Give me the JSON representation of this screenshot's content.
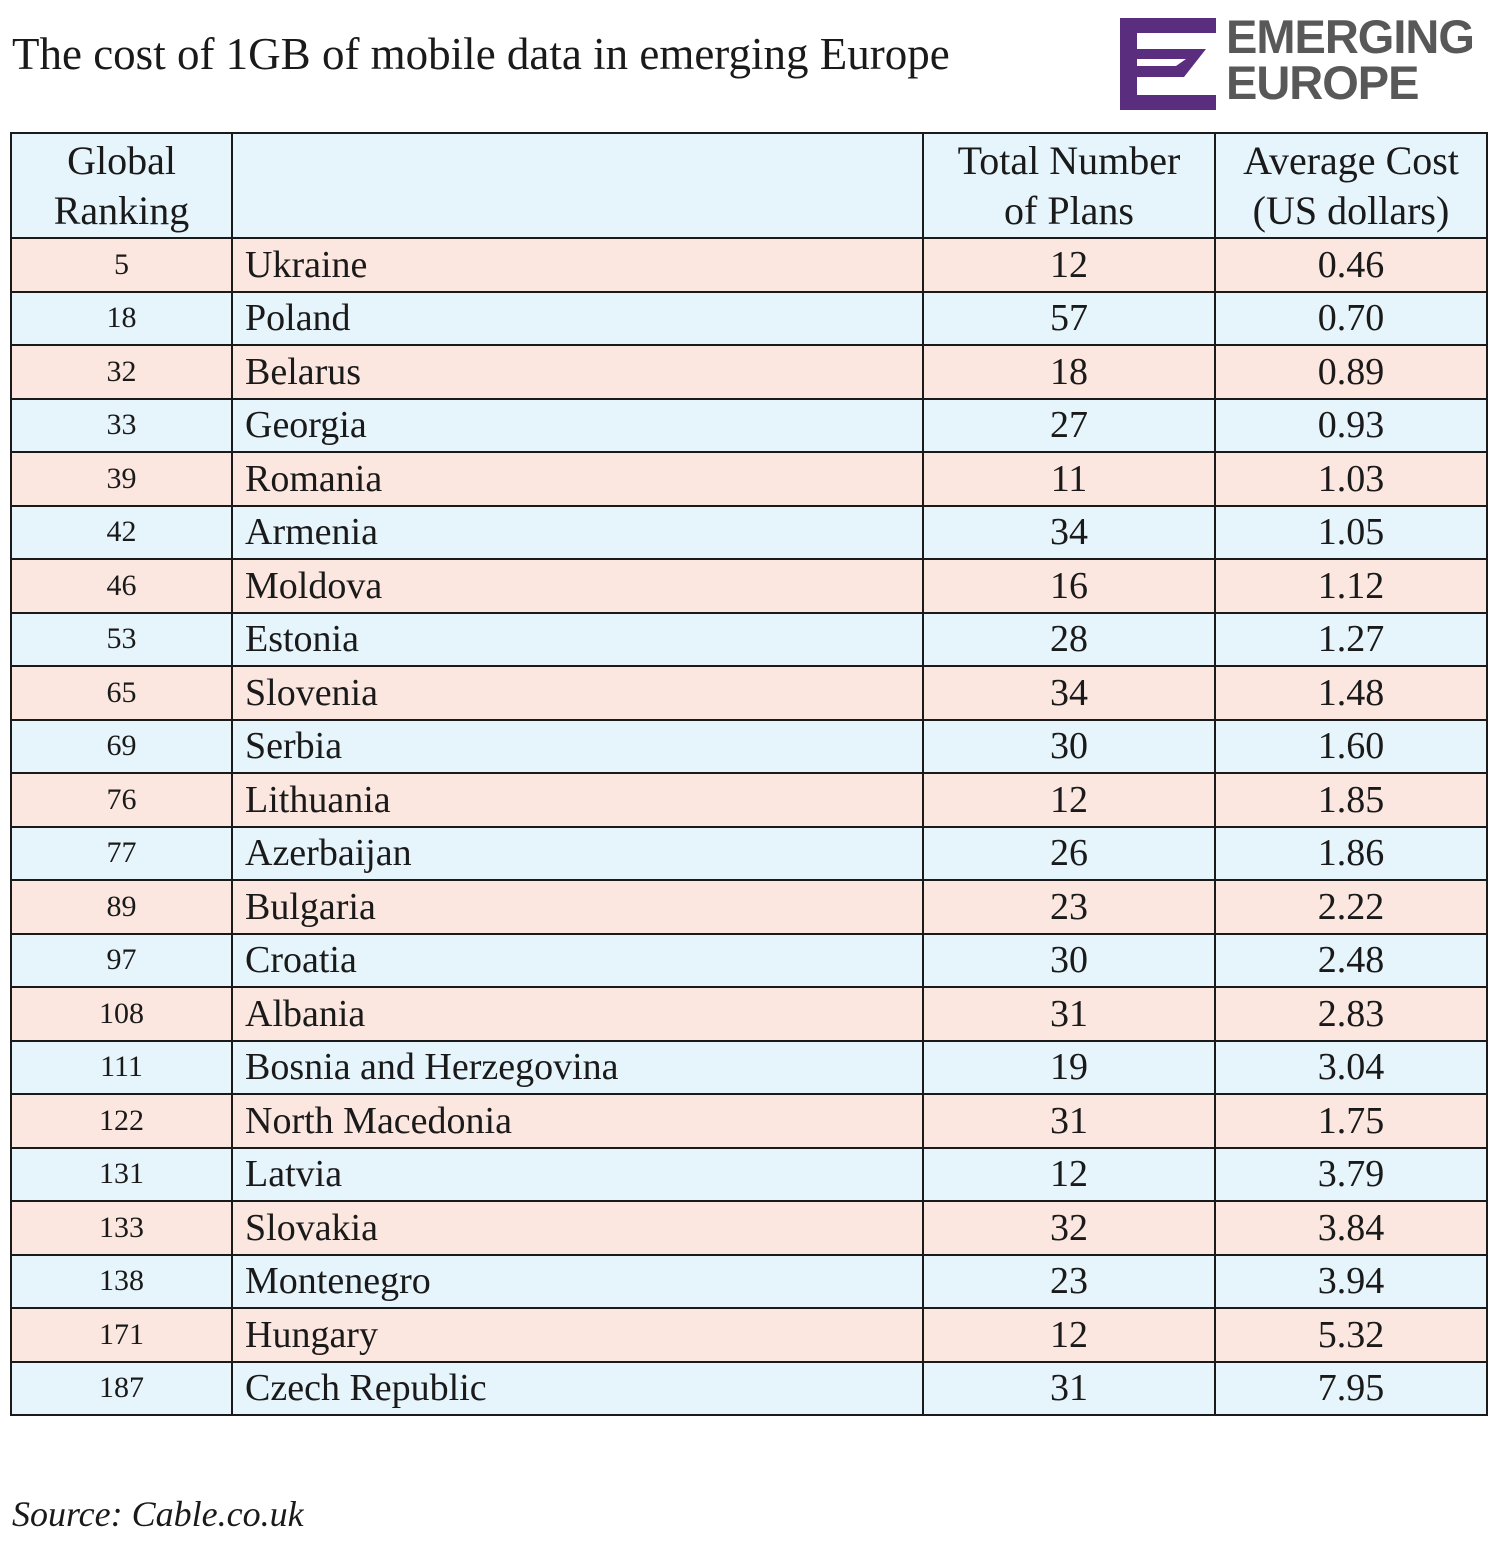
{
  "header": {
    "title": "The cost of 1GB of mobile data in emerging Europe"
  },
  "logo": {
    "line1": "EMERGING",
    "line2": "EUROPE",
    "mark_color": "#5b2d7e",
    "text_color": "#585858"
  },
  "colors": {
    "row_odd": "#fbe7e0",
    "row_even": "#e6f4fb",
    "header_bg": "#e6f4fb",
    "border": "#1a1a1a"
  },
  "chart_data": {
    "type": "table",
    "title": "The cost of 1GB of mobile data in emerging Europe",
    "columns": [
      "Global Ranking",
      "",
      "Total Number of Plans",
      "Average Cost (US dollars)"
    ],
    "header_lines": [
      [
        "Global",
        "Ranking"
      ],
      [
        ""
      ],
      [
        "Total Number",
        "of Plans"
      ],
      [
        "Average Cost",
        "(US dollars)"
      ]
    ],
    "rows": [
      {
        "rank": "5",
        "country": "Ukraine",
        "plans": "12",
        "cost": "0.46"
      },
      {
        "rank": "18",
        "country": "Poland",
        "plans": "57",
        "cost": "0.70"
      },
      {
        "rank": "32",
        "country": "Belarus",
        "plans": "18",
        "cost": "0.89"
      },
      {
        "rank": "33",
        "country": "Georgia",
        "plans": "27",
        "cost": "0.93"
      },
      {
        "rank": "39",
        "country": "Romania",
        "plans": "11",
        "cost": "1.03"
      },
      {
        "rank": "42",
        "country": "Armenia",
        "plans": "34",
        "cost": "1.05"
      },
      {
        "rank": "46",
        "country": "Moldova",
        "plans": "16",
        "cost": "1.12"
      },
      {
        "rank": "53",
        "country": "Estonia",
        "plans": "28",
        "cost": "1.27"
      },
      {
        "rank": "65",
        "country": "Slovenia",
        "plans": "34",
        "cost": "1.48"
      },
      {
        "rank": "69",
        "country": "Serbia",
        "plans": "30",
        "cost": "1.60"
      },
      {
        "rank": "76",
        "country": "Lithuania",
        "plans": "12",
        "cost": "1.85"
      },
      {
        "rank": "77",
        "country": "Azerbaijan",
        "plans": "26",
        "cost": "1.86"
      },
      {
        "rank": "89",
        "country": "Bulgaria",
        "plans": "23",
        "cost": "2.22"
      },
      {
        "rank": "97",
        "country": "Croatia",
        "plans": "30",
        "cost": "2.48"
      },
      {
        "rank": "108",
        "country": "Albania",
        "plans": "31",
        "cost": "2.83"
      },
      {
        "rank": "111",
        "country": "Bosnia and Herzegovina",
        "plans": "19",
        "cost": "3.04"
      },
      {
        "rank": "122",
        "country": "North Macedonia",
        "plans": "31",
        "cost": "1.75"
      },
      {
        "rank": "131",
        "country": "Latvia",
        "plans": "12",
        "cost": "3.79"
      },
      {
        "rank": "133",
        "country": "Slovakia",
        "plans": "32",
        "cost": "3.84"
      },
      {
        "rank": "138",
        "country": "Montenegro",
        "plans": "23",
        "cost": "3.94"
      },
      {
        "rank": "171",
        "country": "Hungary",
        "plans": "12",
        "cost": "5.32"
      },
      {
        "rank": "187",
        "country": "Czech Republic",
        "plans": "31",
        "cost": "7.95"
      }
    ]
  },
  "footer": {
    "source": "Source: Cable.co.uk"
  }
}
